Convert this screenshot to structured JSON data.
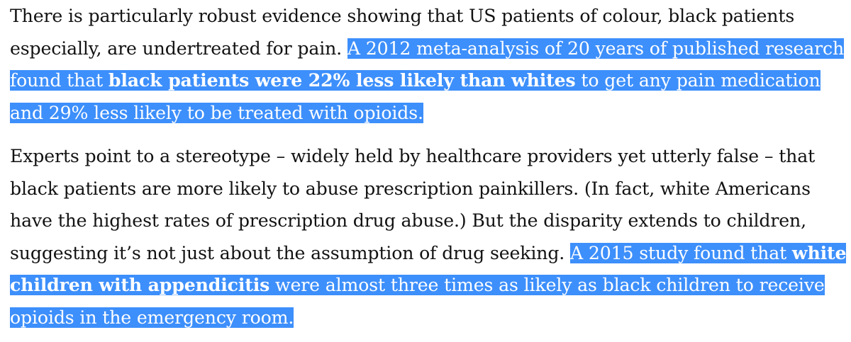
{
  "article": {
    "paragraphs": [
      {
        "intro": "There is particularly robust evidence showing that US patients of colour, black patients especially, are undertreated for pain. ",
        "highlight_before": "A 2012 meta-analysis of 20 years of published research found that ",
        "highlight_bold": "black patients were 22% less likely than whites",
        "highlight_after": " to get any pain medication and 29% less likely to be treated with opioids."
      },
      {
        "intro": "Experts point to a stereotype – widely held by healthcare providers yet utterly false – that black patients are more likely to abuse prescription painkillers. (In fact, white Americans have the highest rates of prescription drug abuse.) But the disparity extends to children, suggesting it’s not just about the assumption of drug seeking. ",
        "highlight_before": "A 2015 study found that ",
        "highlight_bold": "white children with appendicitis",
        "highlight_after": " were almost three times as likely as black children to receive opioids in the emergency room."
      }
    ],
    "colors": {
      "text": "#121212",
      "highlight_background": "#3d8ffb",
      "highlight_text": "#ffffff"
    }
  }
}
